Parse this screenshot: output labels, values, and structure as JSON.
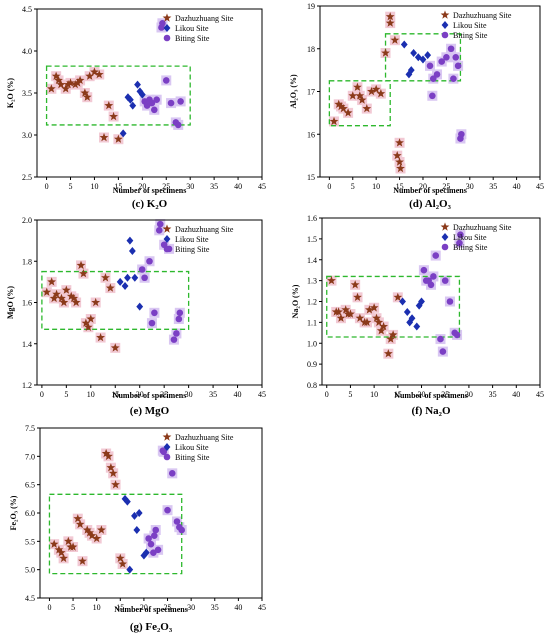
{
  "colors": {
    "dazhuzhuang": "#8b3a1a",
    "likou": "#1b2fb0",
    "biting": "#7b3fc4",
    "highlight_brown": "#f2c9d4",
    "highlight_purple": "#d9c7f2",
    "box": "#2db82d"
  },
  "chart_data": [
    {
      "id": "k2o",
      "type": "scatter",
      "caption": "(c) K₂O",
      "xlabel": "Number of specimens",
      "ylabel": "K₂O (%)",
      "xlim": [
        -2,
        45
      ],
      "ylim": [
        2.5,
        4.5
      ],
      "xticks": [
        0,
        5,
        10,
        15,
        20,
        25,
        30,
        35,
        40,
        45
      ],
      "yticks": [
        2.5,
        3.0,
        3.5,
        4.0,
        4.5
      ],
      "ytick_labels": [
        "2.5",
        "3.0",
        "3.5",
        "4.0",
        "4.5"
      ],
      "box": {
        "x": [
          0,
          30
        ],
        "y": [
          3.12,
          3.82
        ]
      },
      "series": [
        {
          "name": "Dazhuzhuang Site",
          "marker": "star",
          "x": [
            1,
            2,
            3,
            4,
            5,
            6,
            7,
            8,
            9,
            10,
            11,
            12,
            13,
            14,
            15,
            2.5,
            4.5,
            6.5,
            8.5
          ],
          "y": [
            3.55,
            3.7,
            3.6,
            3.55,
            3.62,
            3.6,
            3.65,
            3.5,
            3.7,
            3.75,
            3.72,
            2.97,
            3.35,
            3.22,
            2.95,
            3.65,
            3.6,
            3.62,
            3.45
          ]
        },
        {
          "name": "Likou Site",
          "marker": "diamond",
          "x": [
            16,
            17,
            17.5,
            18,
            19,
            19.5,
            20
          ],
          "y": [
            3.02,
            3.45,
            3.42,
            3.35,
            3.6,
            3.52,
            3.48
          ]
        },
        {
          "name": "Biting Site",
          "marker": "circle",
          "x": [
            20.5,
            21,
            21.5,
            22,
            22.5,
            23,
            24,
            24.2,
            25,
            26,
            27,
            27.5,
            28
          ],
          "y": [
            3.4,
            3.35,
            3.42,
            3.38,
            3.3,
            3.42,
            4.28,
            4.33,
            3.65,
            3.38,
            3.15,
            3.12,
            3.4
          ]
        }
      ]
    },
    {
      "id": "al2o3",
      "type": "scatter",
      "caption": "(d) Al₂O₃",
      "xlabel": "Number of specimens",
      "ylabel": "Al₂O₃ (%)",
      "xlim": [
        -2,
        45
      ],
      "ylim": [
        15,
        19
      ],
      "xticks": [
        0,
        5,
        10,
        15,
        20,
        25,
        30,
        35,
        40,
        45
      ],
      "yticks": [
        15,
        16,
        17,
        18,
        19
      ],
      "ytick_labels": [
        "15",
        "16",
        "17",
        "18",
        "19"
      ],
      "boxes": [
        {
          "x": [
            0,
            13
          ],
          "y": [
            16.2,
            17.25
          ]
        },
        {
          "x": [
            12,
            28
          ],
          "y": [
            17.25,
            18.35
          ]
        }
      ],
      "series": [
        {
          "name": "Dazhuzhuang Site",
          "marker": "star",
          "x": [
            1,
            2,
            3,
            4,
            5,
            6,
            7,
            8,
            9,
            10,
            11,
            12,
            13,
            14,
            15,
            13,
            14.5,
            15,
            15.2,
            2.5,
            6.5
          ],
          "y": [
            16.3,
            16.7,
            16.6,
            16.5,
            16.9,
            17.1,
            16.8,
            16.6,
            17.0,
            17.05,
            16.95,
            17.9,
            18.75,
            18.2,
            15.8,
            18.6,
            15.5,
            15.35,
            15.2,
            16.65,
            16.9
          ]
        },
        {
          "name": "Likou Site",
          "marker": "diamond",
          "x": [
            16,
            17,
            17.5,
            18,
            19,
            20,
            21
          ],
          "y": [
            18.1,
            17.4,
            17.5,
            17.9,
            17.8,
            17.75,
            17.85
          ]
        },
        {
          "name": "Biting Site",
          "marker": "circle",
          "x": [
            21.5,
            22,
            23,
            24,
            25,
            26,
            26.5,
            27,
            27.5,
            28,
            28.2,
            22.2
          ],
          "y": [
            17.6,
            16.9,
            17.4,
            17.7,
            17.8,
            18.0,
            17.3,
            17.8,
            17.6,
            15.9,
            16.0,
            17.3
          ]
        }
      ]
    },
    {
      "id": "mgo",
      "type": "scatter",
      "caption": "(e) MgO",
      "xlabel": "Number of specimens",
      "ylabel": "MgO (%)",
      "xlim": [
        -1,
        45
      ],
      "ylim": [
        1.2,
        2.0
      ],
      "xticks": [
        0,
        5,
        10,
        15,
        20,
        25,
        30,
        35,
        40,
        45
      ],
      "yticks": [
        1.2,
        1.4,
        1.6,
        1.8,
        2.0
      ],
      "ytick_labels": [
        "1.2",
        "1.4",
        "1.6",
        "1.8",
        "2.0"
      ],
      "box": {
        "x": [
          0,
          30
        ],
        "y": [
          1.47,
          1.75
        ]
      },
      "series": [
        {
          "name": "Dazhuzhuang Site",
          "marker": "star",
          "x": [
            1,
            2,
            3,
            4,
            5,
            6,
            7,
            8,
            9,
            10,
            11,
            12,
            13,
            14,
            15,
            2.5,
            4.5,
            6.5,
            8.5,
            9.5
          ],
          "y": [
            1.65,
            1.7,
            1.64,
            1.62,
            1.66,
            1.63,
            1.6,
            1.78,
            1.5,
            1.52,
            1.6,
            1.43,
            1.72,
            1.67,
            1.38,
            1.62,
            1.6,
            1.62,
            1.74,
            1.48
          ]
        },
        {
          "name": "Likou Site",
          "marker": "diamond",
          "x": [
            16,
            17,
            17.5,
            18,
            18.5,
            19,
            20
          ],
          "y": [
            1.7,
            1.68,
            1.72,
            1.9,
            1.85,
            1.72,
            1.58
          ]
        },
        {
          "name": "Biting Site",
          "marker": "circle",
          "x": [
            20.5,
            21,
            22,
            23,
            24,
            24.2,
            25,
            26,
            27,
            27.5,
            28,
            28.2,
            22.5
          ],
          "y": [
            1.76,
            1.72,
            1.8,
            1.55,
            1.95,
            1.98,
            1.88,
            1.86,
            1.42,
            1.45,
            1.52,
            1.55,
            1.5
          ]
        }
      ]
    },
    {
      "id": "na2o",
      "type": "scatter",
      "caption": "(f) Na₂O",
      "xlabel": "Number of specimens",
      "ylabel": "Na₂O (%)",
      "xlim": [
        -1,
        45
      ],
      "ylim": [
        0.8,
        1.6
      ],
      "xticks": [
        0,
        5,
        10,
        15,
        20,
        25,
        30,
        35,
        40,
        45
      ],
      "yticks": [
        0.8,
        0.9,
        1.0,
        1.1,
        1.2,
        1.3,
        1.4,
        1.5,
        1.6
      ],
      "ytick_labels": [
        "0.8",
        "0.9",
        "1.0",
        "1.1",
        "1.2",
        "1.3",
        "1.4",
        "1.5",
        "1.6"
      ],
      "box": {
        "x": [
          0,
          28
        ],
        "y": [
          1.03,
          1.32
        ]
      },
      "series": [
        {
          "name": "Dazhuzhuang Site",
          "marker": "star",
          "x": [
            1,
            2,
            3,
            4,
            5,
            6,
            7,
            8,
            9,
            10,
            11,
            12,
            13,
            14,
            15,
            2.5,
            4.5,
            6.5,
            8.5,
            10.5,
            11.5,
            13.5
          ],
          "y": [
            1.3,
            1.15,
            1.12,
            1.16,
            1.14,
            1.28,
            1.12,
            1.1,
            1.16,
            1.17,
            1.1,
            1.08,
            0.95,
            1.04,
            1.22,
            1.15,
            1.14,
            1.22,
            1.1,
            1.12,
            1.06,
            1.02
          ]
        },
        {
          "name": "Likou Site",
          "marker": "diamond",
          "x": [
            16,
            17,
            17.5,
            18,
            19,
            19.5,
            20
          ],
          "y": [
            1.2,
            1.15,
            1.1,
            1.12,
            1.08,
            1.18,
            1.2
          ]
        },
        {
          "name": "Biting Site",
          "marker": "circle",
          "x": [
            20.5,
            21,
            22,
            22.5,
            23,
            24,
            24.5,
            25,
            26,
            27,
            27.5,
            28,
            28.2,
            21.5
          ],
          "y": [
            1.35,
            1.3,
            1.28,
            1.32,
            1.42,
            1.02,
            0.96,
            1.3,
            1.2,
            1.05,
            1.04,
            1.48,
            1.52,
            1.3
          ]
        }
      ]
    },
    {
      "id": "fe2o3",
      "type": "scatter",
      "caption": "(g) Fe₂O₃",
      "xlabel": "Number of specimens",
      "ylabel": "Fe₂O₃ (%)",
      "xlim": [
        -2,
        45
      ],
      "ylim": [
        4.5,
        7.5
      ],
      "xticks": [
        0,
        5,
        10,
        15,
        20,
        25,
        30,
        35,
        40,
        45
      ],
      "yticks": [
        4.5,
        5.0,
        5.5,
        6.0,
        6.5,
        7.0,
        7.5
      ],
      "ytick_labels": [
        "4.5",
        "5.0",
        "5.5",
        "6.0",
        "6.5",
        "7.0",
        "7.5"
      ],
      "box": {
        "x": [
          0,
          28
        ],
        "y": [
          4.93,
          6.33
        ]
      },
      "series": [
        {
          "name": "Dazhuzhuang Site",
          "marker": "star",
          "x": [
            1,
            2,
            3,
            4,
            5,
            6,
            7,
            8,
            9,
            10,
            11,
            12,
            13,
            14,
            15,
            2.5,
            4.5,
            6.5,
            8.5,
            12.5,
            13.5,
            15.5
          ],
          "y": [
            5.45,
            5.35,
            5.2,
            5.5,
            5.4,
            5.9,
            5.15,
            5.7,
            5.6,
            5.55,
            5.7,
            7.05,
            6.8,
            6.5,
            5.2,
            5.3,
            5.4,
            5.8,
            5.65,
            7.0,
            6.7,
            5.1
          ]
        },
        {
          "name": "Likou Site",
          "marker": "diamond",
          "x": [
            16,
            16.5,
            17,
            18,
            18.5,
            19,
            20,
            20.5
          ],
          "y": [
            6.25,
            6.2,
            5.0,
            5.95,
            5.7,
            6.0,
            5.25,
            5.3
          ]
        },
        {
          "name": "Biting Site",
          "marker": "circle",
          "x": [
            21,
            21.5,
            22,
            22.5,
            23,
            24,
            24.2,
            25,
            26,
            27,
            27.5,
            28,
            22.2
          ],
          "y": [
            5.55,
            5.45,
            5.3,
            5.7,
            5.35,
            7.1,
            7.08,
            6.05,
            6.7,
            5.85,
            5.75,
            5.7,
            5.6
          ]
        }
      ]
    }
  ]
}
